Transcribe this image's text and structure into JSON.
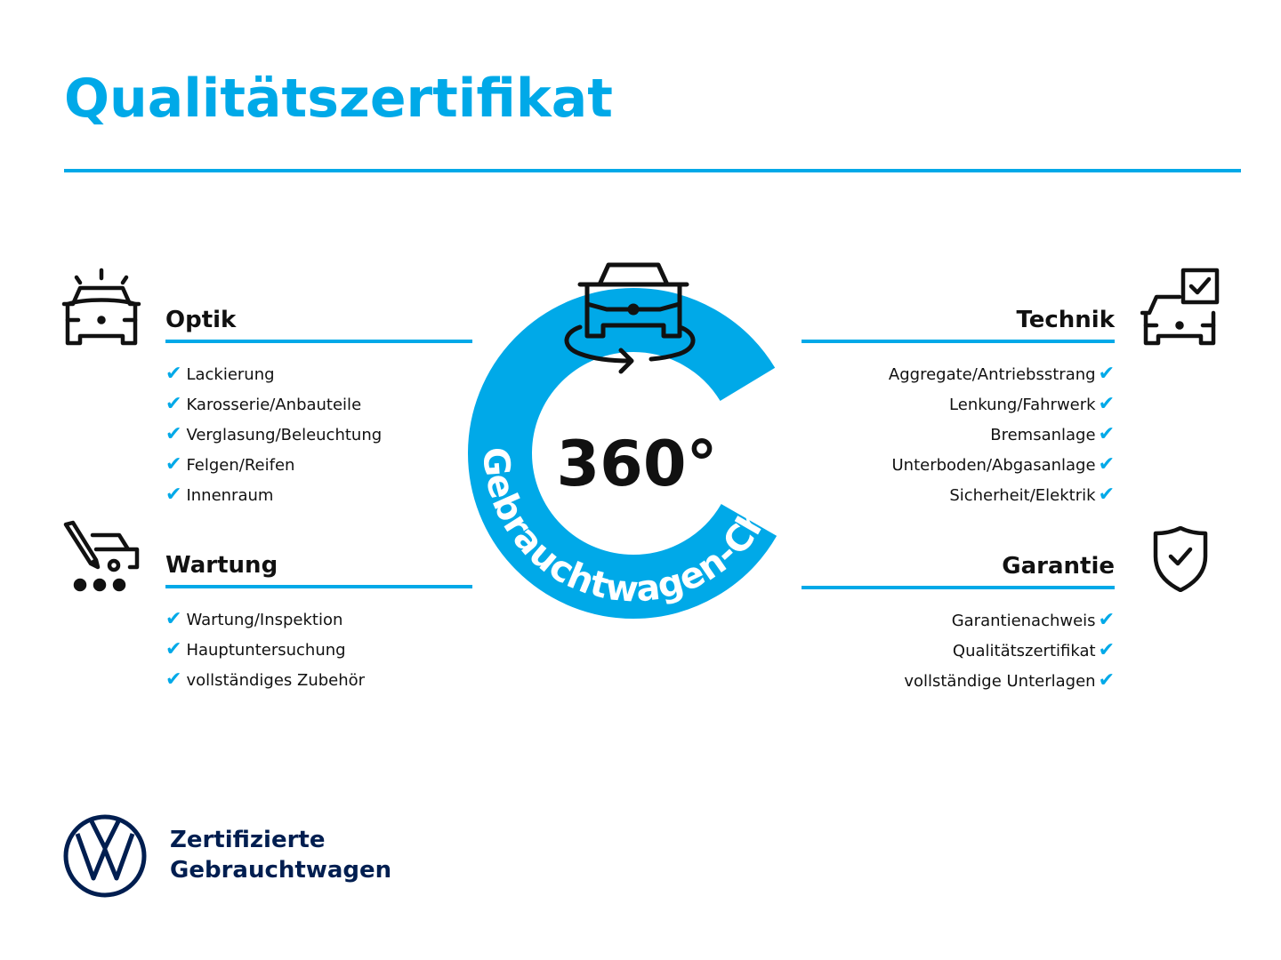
{
  "title": "Qualitätszertifikat",
  "colors": {
    "accent": "#00a9e8",
    "brand_navy": "#001e50",
    "text": "#111111"
  },
  "badge": {
    "number": "360°",
    "ring_text": "Gebrauchtwagen-Check",
    "icon": "car-rotate-icon"
  },
  "sections": {
    "optik": {
      "title": "Optik",
      "icon": "car-lights-icon",
      "items": [
        "Lackierung",
        "Karosserie/Anbauteile",
        "Verglasung/Beleuchtung",
        "Felgen/Reifen",
        "Innenraum"
      ]
    },
    "wartung": {
      "title": "Wartung",
      "icon": "car-service-icon",
      "items": [
        "Wartung/Inspektion",
        "Hauptuntersuchung",
        "vollständiges Zubehör"
      ]
    },
    "technik": {
      "title": "Technik",
      "icon": "car-checkbox-icon",
      "items": [
        "Aggregate/Antriebsstrang",
        "Lenkung/Fahrwerk",
        "Bremsanlage",
        "Unterboden/Abgasanlage",
        "Sicherheit/Elektrik"
      ]
    },
    "garantie": {
      "title": "Garantie",
      "icon": "shield-check-icon",
      "items": [
        "Garantienachweis",
        "Qualitätszertifikat",
        "vollständige Unterlagen"
      ]
    }
  },
  "check_glyph": "✔",
  "logo": {
    "line1": "Zertifizierte",
    "line2": "Gebrauchtwagen",
    "mark": "VW"
  }
}
